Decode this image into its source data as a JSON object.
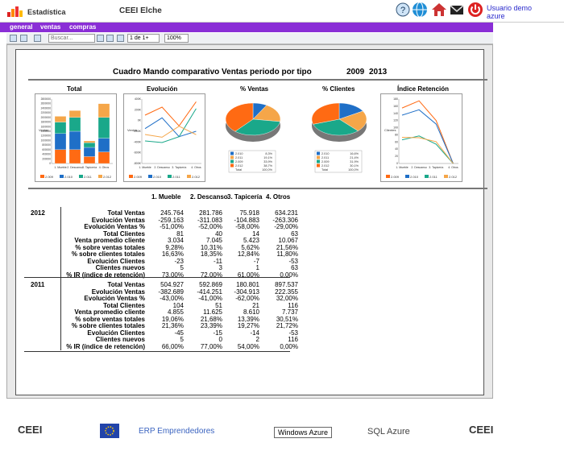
{
  "header": {
    "app_title": "Estadística",
    "org_title": "CEEI Elche",
    "user_line1": "Usuario demo",
    "user_line2": "azure",
    "icons": [
      "help-icon",
      "globe-icon",
      "home-icon",
      "mail-icon",
      "power-icon"
    ]
  },
  "menu": [
    "general",
    "ventas",
    "compras"
  ],
  "toolbar": {
    "search_placeholder": "Buscar...",
    "page_value": "1 de 1+",
    "zoom_value": "100%"
  },
  "report": {
    "title": "Cuadro Mando comparativo Ventas periodo por tipo",
    "year_a": "2009",
    "year_b": "2013",
    "columns": [
      "1. Mueble",
      "2. Descanso",
      "3. Tapicería",
      "4. Otros"
    ],
    "row_labels": [
      "Total Ventas",
      "Evolución Ventas",
      "Evolución Ventas %",
      "Total Clientes",
      "Venta promedio cliente",
      "% sobre ventas totales",
      "% sobre clientes totales",
      "Evolución Clientes",
      "Clientes nuevos",
      "% IR (índice de retención)"
    ],
    "years": [
      {
        "year": "2012",
        "rows": [
          [
            "245.764",
            "281.786",
            "75.918",
            "634.231"
          ],
          [
            "-259.163",
            "-311.083",
            "-104.883",
            "-263.306"
          ],
          [
            "-51,00%",
            "-52,00%",
            "-58,00%",
            "-29,00%"
          ],
          [
            "81",
            "40",
            "14",
            "63"
          ],
          [
            "3.034",
            "7.045",
            "5.423",
            "10.067"
          ],
          [
            "9,28%",
            "10,31%",
            "5,62%",
            "21,56%"
          ],
          [
            "16,63%",
            "18,35%",
            "12,84%",
            "11,80%"
          ],
          [
            "-23",
            "-11",
            "-7",
            "-53"
          ],
          [
            "5",
            "3",
            "1",
            "63"
          ],
          [
            "73,00%",
            "72,00%",
            "61,00%",
            "0,00%"
          ]
        ]
      },
      {
        "year": "2011",
        "rows": [
          [
            "504.927",
            "592.869",
            "180.801",
            "897.537"
          ],
          [
            "-382.689",
            "-414.251",
            "-304.913",
            "222.355"
          ],
          [
            "-43,00%",
            "-41,00%",
            "-62,00%",
            "32,00%"
          ],
          [
            "104",
            "51",
            "21",
            "116"
          ],
          [
            "4.855",
            "11.625",
            "8.610",
            "7.737"
          ],
          [
            "19,06%",
            "21,68%",
            "13,39%",
            "30,51%"
          ],
          [
            "21,36%",
            "23,39%",
            "19,27%",
            "21,72%"
          ],
          [
            "-45",
            "-15",
            "-14",
            "-53"
          ],
          [
            "5",
            "0",
            "2",
            "116"
          ],
          [
            "66,00%",
            "77,00%",
            "54,00%",
            "0,00%"
          ]
        ]
      }
    ]
  },
  "chart_data": [
    {
      "type": "bar",
      "title": "Total",
      "ylabel": "Ventas",
      "categories": [
        "1. Mueble",
        "2. Descanso",
        "3. Tapicería",
        "4. Otros"
      ],
      "series": [
        {
          "name": "2.009",
          "values": [
            600000,
            600000,
            300000,
            500000
          ]
        },
        {
          "name": "2.010",
          "values": [
            700000,
            800000,
            400000,
            600000
          ]
        },
        {
          "name": "2.011",
          "values": [
            500000,
            600000,
            200000,
            900000
          ]
        },
        {
          "name": "2.012",
          "values": [
            250000,
            300000,
            80000,
            600000
          ]
        }
      ],
      "ylim": [
        0,
        2800000
      ],
      "yticks": [
        "2800000",
        "2600000",
        "2400000",
        "2200000",
        "2000000",
        "1800000",
        "1600000",
        "1400000",
        "1200000",
        "1000000",
        "800000",
        "600000",
        "400000",
        "200000",
        "0"
      ],
      "legend": [
        "2.009",
        "2.010",
        "2.011",
        "2.012"
      ]
    },
    {
      "type": "line",
      "title": "Evolución",
      "ylabel": "Ventas",
      "categories": [
        "1. Mueble",
        "2. Descanso",
        "3. Tapicería",
        "4. Otros"
      ],
      "yticks": [
        "400K",
        "200K",
        "0K",
        "-200K",
        "-400K",
        "-600K",
        "-800K"
      ],
      "ylim": [
        -800,
        400
      ],
      "series": [
        {
          "name": "2.009",
          "values": [
            100,
            250,
            -100,
            350
          ]
        },
        {
          "name": "2.010",
          "values": [
            -150,
            50,
            -300,
            -200
          ]
        },
        {
          "name": "2.011",
          "values": [
            -380,
            -410,
            -300,
            222
          ]
        },
        {
          "name": "2.012",
          "values": [
            -260,
            -311,
            -105,
            -263
          ]
        }
      ],
      "legend": [
        "2.009",
        "2.010",
        "2.011",
        "2.012"
      ]
    },
    {
      "type": "pie",
      "title": "% Ventas",
      "slices": [
        {
          "label": "2.010",
          "value": 8.3
        },
        {
          "label": "2.011",
          "value": 19.1
        },
        {
          "label": "2.009",
          "value": 33.9
        },
        {
          "label": "2.012",
          "value": 38.7
        }
      ],
      "legend_rows": [
        [
          "2.010",
          "8,3%"
        ],
        [
          "2.011",
          "19,1%"
        ],
        [
          "2.009",
          "33,9%"
        ],
        [
          "2.012",
          "38,7%"
        ],
        [
          "Total",
          "100,0%"
        ]
      ]
    },
    {
      "type": "pie",
      "title": "% Clientes",
      "slices": [
        {
          "label": "2.010",
          "value": 16.6
        },
        {
          "label": "2.011",
          "value": 21.4
        },
        {
          "label": "2.009",
          "value": 31.9
        },
        {
          "label": "2.012",
          "value": 30.1
        }
      ],
      "legend_rows": [
        [
          "2.010",
          "16,6%"
        ],
        [
          "2.011",
          "21,4%"
        ],
        [
          "2.009",
          "31,9%"
        ],
        [
          "2.012",
          "30,1%"
        ],
        [
          "Total",
          "100,0%"
        ]
      ]
    },
    {
      "type": "line",
      "title": "Índice Retención",
      "ylabel": "Clientes",
      "categories": [
        "1. Mueble",
        "2. Descanso",
        "3. Tapicería",
        "4. Otros"
      ],
      "yticks": [
        "180",
        "160",
        "140",
        "120",
        "100",
        "80",
        "60",
        "40",
        "20",
        "0"
      ],
      "ylim": [
        0,
        180
      ],
      "series": [
        {
          "name": "2.009",
          "values": [
            155,
            175,
            120,
            0
          ]
        },
        {
          "name": "2.010",
          "values": [
            135,
            150,
            110,
            0
          ]
        },
        {
          "name": "2.011",
          "values": [
            66,
            77,
            54,
            0
          ]
        },
        {
          "name": "2.012",
          "values": [
            73,
            72,
            61,
            0
          ]
        }
      ],
      "legend": [
        "2.009",
        "2.010",
        "2.011",
        "2.012"
      ]
    }
  ],
  "footer": {
    "org_left": "CEEI",
    "erp": "ERP Emprendedores",
    "azure1": "Windows Azure",
    "azure2": "SQL Azure",
    "org_right": "CEEI"
  },
  "colors": {
    "s2009": "#ff6a13",
    "s2010": "#1f6fc7",
    "s2011": "#1aa88a",
    "s2012": "#f5a649",
    "menu": "#8a2ed6"
  }
}
